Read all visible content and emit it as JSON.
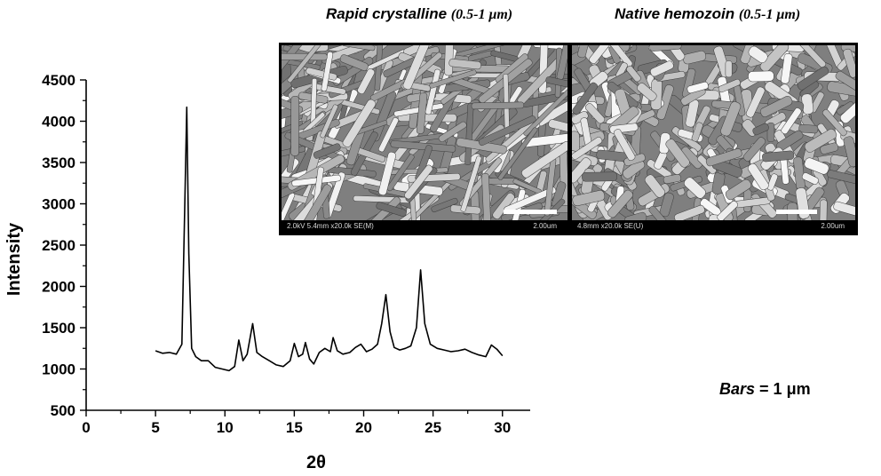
{
  "chart_data": {
    "type": "line",
    "xlabel": "2θ",
    "ylabel": "Intensity",
    "xlim": [
      0,
      32
    ],
    "ylim": [
      500,
      4500
    ],
    "x_ticks": [
      0,
      5,
      10,
      15,
      20,
      25,
      30
    ],
    "y_ticks": [
      500,
      1000,
      1500,
      2000,
      2500,
      3000,
      3500,
      4000,
      4500
    ],
    "grid": false,
    "series": [
      {
        "name": "",
        "x": [
          5.0,
          5.5,
          6.0,
          6.5,
          6.9,
          7.1,
          7.25,
          7.4,
          7.6,
          7.9,
          8.3,
          8.8,
          9.3,
          9.8,
          10.3,
          10.7,
          11.0,
          11.3,
          11.6,
          12.0,
          12.3,
          12.7,
          13.2,
          13.7,
          14.2,
          14.7,
          15.0,
          15.3,
          15.6,
          15.8,
          16.1,
          16.4,
          16.8,
          17.2,
          17.6,
          17.8,
          18.1,
          18.5,
          19.0,
          19.4,
          19.8,
          20.2,
          20.6,
          21.0,
          21.3,
          21.6,
          21.9,
          22.2,
          22.6,
          23.0,
          23.4,
          23.8,
          24.1,
          24.4,
          24.8,
          25.3,
          25.8,
          26.3,
          26.8,
          27.3,
          27.8,
          28.3,
          28.8,
          29.2,
          29.6,
          30.0
        ],
        "y": [
          1220,
          1190,
          1200,
          1180,
          1300,
          2900,
          4170,
          2400,
          1250,
          1150,
          1100,
          1100,
          1020,
          1000,
          980,
          1030,
          1350,
          1100,
          1180,
          1550,
          1200,
          1150,
          1100,
          1050,
          1030,
          1100,
          1310,
          1150,
          1180,
          1320,
          1120,
          1060,
          1200,
          1250,
          1210,
          1380,
          1220,
          1180,
          1200,
          1260,
          1300,
          1210,
          1240,
          1300,
          1550,
          1900,
          1450,
          1260,
          1230,
          1250,
          1280,
          1500,
          2200,
          1550,
          1300,
          1250,
          1230,
          1210,
          1220,
          1240,
          1200,
          1170,
          1150,
          1290,
          1240,
          1160
        ]
      }
    ]
  },
  "panels": [
    {
      "title_main": "Rapid crystalline",
      "title_size": "(0.5-1 μm)",
      "meta": "2.0kV 5.4mm x20.0k SE(M)",
      "scale": "2.00um"
    },
    {
      "title_main": "Native hemozoin",
      "title_size": "(0.5-1 μm)",
      "meta": "4.8mm x20.0k SE(U)",
      "scale": "2.00um"
    }
  ],
  "note": {
    "label": "Bars",
    "value": "= 1 μm"
  },
  "colors": {
    "line": "#000000",
    "sem_background": "#7f7f7f"
  }
}
